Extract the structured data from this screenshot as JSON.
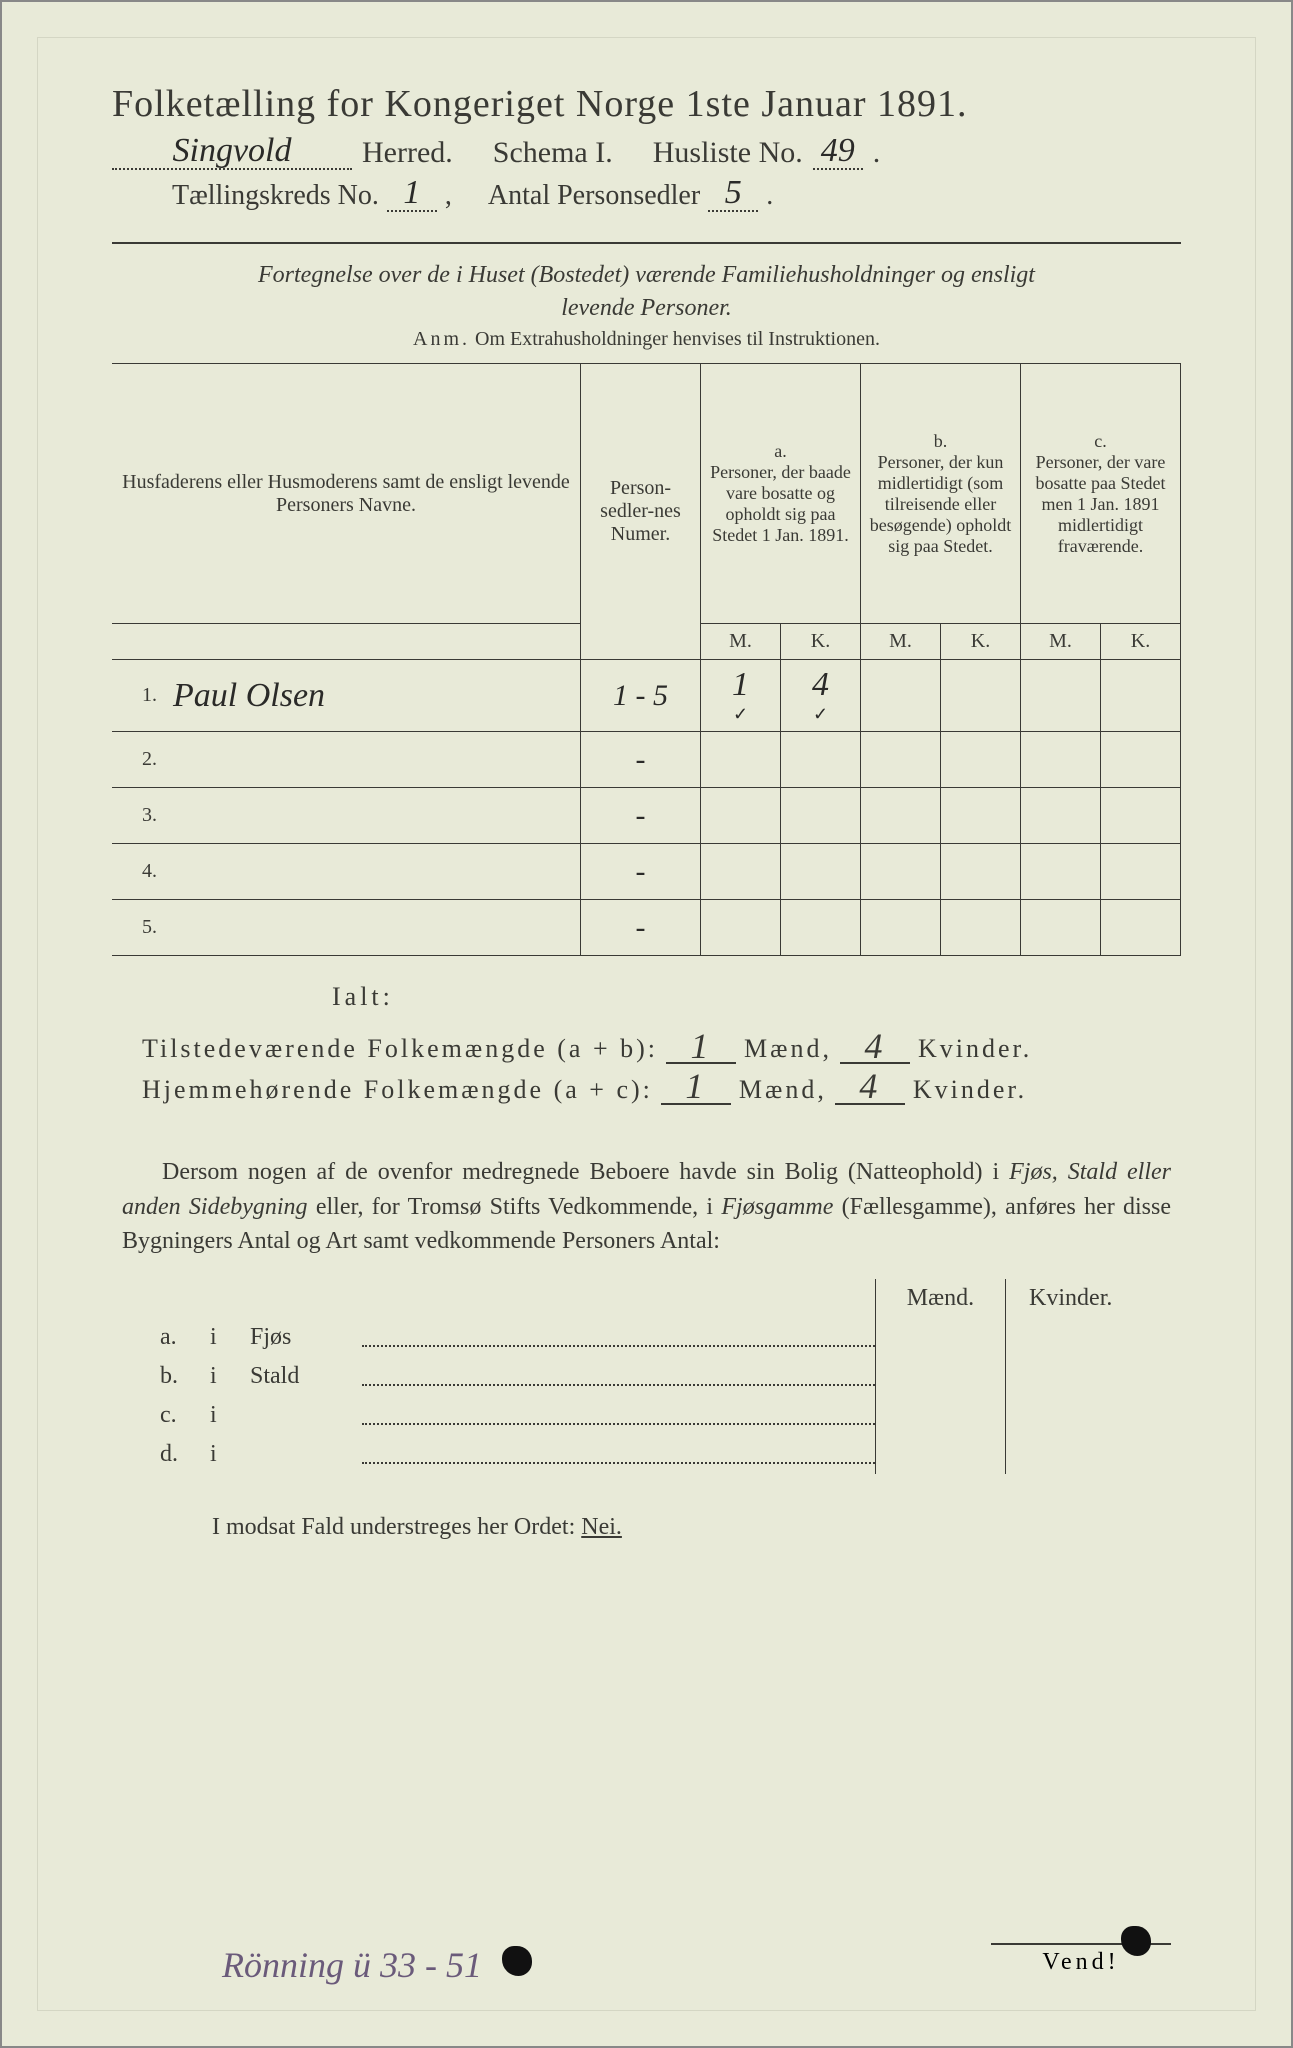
{
  "title": "Folketælling for Kongeriget Norge 1ste Januar 1891.",
  "header": {
    "herred_value": "Singvold",
    "herred_label": "Herred.",
    "schema_label": "Schema I.",
    "husliste_label": "Husliste No.",
    "husliste_value": "49",
    "kreds_label": "Tællingskreds No.",
    "kreds_value": "1",
    "antal_label": "Antal Personsedler",
    "antal_value": "5"
  },
  "intro": {
    "line1": "Fortegnelse over de i Huset (Bostedet) værende Familiehusholdninger og ensligt",
    "line2": "levende Personer.",
    "anm_label": "Anm.",
    "anm_text": "Om Extrahusholdninger henvises til Instruktionen."
  },
  "table": {
    "col_names": "Husfaderens eller Husmoderens samt de ensligt levende Personers Navne.",
    "col_numer": "Person-sedler-nes Numer.",
    "col_a": "a.\nPersoner, der baade vare bosatte og opholdt sig paa Stedet 1 Jan. 1891.",
    "col_b": "b.\nPersoner, der kun midlertidigt (som tilreisende eller besøgende) opholdt sig paa Stedet.",
    "col_c": "c.\nPersoner, der vare bosatte paa Stedet men 1 Jan. 1891 midlertidigt fraværende.",
    "m": "M.",
    "k": "K.",
    "rows": [
      {
        "n": "1.",
        "name": "Paul Olsen",
        "numer": "1 - 5",
        "a_m": "1",
        "a_k": "4",
        "b_m": "",
        "b_k": "",
        "c_m": "",
        "c_k": ""
      },
      {
        "n": "2.",
        "name": "",
        "numer": "-",
        "a_m": "",
        "a_k": "",
        "b_m": "",
        "b_k": "",
        "c_m": "",
        "c_k": ""
      },
      {
        "n": "3.",
        "name": "",
        "numer": "-",
        "a_m": "",
        "a_k": "",
        "b_m": "",
        "b_k": "",
        "c_m": "",
        "c_k": ""
      },
      {
        "n": "4.",
        "name": "",
        "numer": "-",
        "a_m": "",
        "a_k": "",
        "b_m": "",
        "b_k": "",
        "c_m": "",
        "c_k": ""
      },
      {
        "n": "5.",
        "name": "",
        "numer": "-",
        "a_m": "",
        "a_k": "",
        "b_m": "",
        "b_k": "",
        "c_m": "",
        "c_k": ""
      }
    ]
  },
  "ialt": "Ialt:",
  "sums": {
    "tilstede_label": "Tilstedeværende Folkemængde (a + b):",
    "hjemme_label": "Hjemmehørende Folkemængde (a + c):",
    "maend": "Mænd,",
    "kvinder": "Kvinder.",
    "t_m": "1",
    "t_k": "4",
    "h_m": "1",
    "h_k": "4"
  },
  "para": {
    "text1": "Dersom nogen af de ovenfor medregnede Beboere havde sin Bolig (Natteophold) i ",
    "it1": "Fjøs, Stald eller anden Sidebygning",
    "text2": " eller, for Tromsø Stifts Vedkommende, i ",
    "it2": "Fjøsgamme",
    "text3": " (Fællesgamme), anføres her disse Bygningers Antal og Art samt vedkommende Personers Antal:"
  },
  "subtable": {
    "maend": "Mænd.",
    "kvinder": "Kvinder.",
    "rows": [
      {
        "idx": "a.",
        "i": "i",
        "label": "Fjøs"
      },
      {
        "idx": "b.",
        "i": "i",
        "label": "Stald"
      },
      {
        "idx": "c.",
        "i": "i",
        "label": ""
      },
      {
        "idx": "d.",
        "i": "i",
        "label": ""
      }
    ]
  },
  "modsat": {
    "pre": "I modsat Fald understreges her Ordet: ",
    "nei": "Nei."
  },
  "vend": "Vend!",
  "foothand": "Rönning ü 33 - 51",
  "colors": {
    "paper": "#e8ead8",
    "ink": "#3a3a35",
    "handwriting": "#2a2a28",
    "purple_ink": "#6a5a7a"
  }
}
